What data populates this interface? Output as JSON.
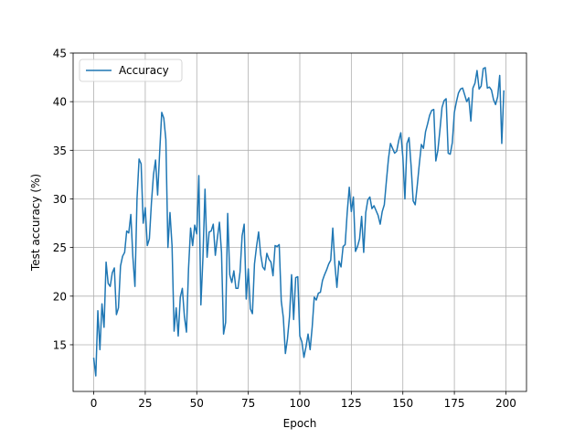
{
  "chart_data": {
    "type": "line",
    "title": "",
    "xlabel": "Epoch",
    "ylabel": "Test accuracy (%)",
    "xlim": [
      -10,
      210
    ],
    "ylim": [
      10.2,
      45
    ],
    "xticks": [
      0,
      25,
      50,
      75,
      100,
      125,
      150,
      175,
      200
    ],
    "yticks": [
      15,
      20,
      25,
      30,
      35,
      40,
      45
    ],
    "xtick_labels": [
      "0",
      "25",
      "50",
      "75",
      "100",
      "125",
      "150",
      "175",
      "200"
    ],
    "ytick_labels": [
      "15",
      "20",
      "25",
      "30",
      "35",
      "40",
      "45"
    ],
    "grid": true,
    "legend_position": "top-left",
    "series": [
      {
        "name": "Accuracy",
        "color": "#1f77b4",
        "x": [
          0,
          1,
          2,
          3,
          4,
          5,
          6,
          7,
          8,
          9,
          10,
          11,
          12,
          13,
          14,
          15,
          16,
          17,
          18,
          19,
          20,
          21,
          22,
          23,
          24,
          25,
          26,
          27,
          28,
          29,
          30,
          31,
          32,
          33,
          34,
          35,
          36,
          37,
          38,
          39,
          40,
          41,
          42,
          43,
          44,
          45,
          46,
          47,
          48,
          49,
          50,
          51,
          52,
          53,
          54,
          55,
          56,
          57,
          58,
          59,
          60,
          61,
          62,
          63,
          64,
          65,
          66,
          67,
          68,
          69,
          70,
          71,
          72,
          73,
          74,
          75,
          76,
          77,
          78,
          79,
          80,
          81,
          82,
          83,
          84,
          85,
          86,
          87,
          88,
          89,
          90,
          91,
          92,
          93,
          94,
          95,
          96,
          97,
          98,
          99,
          100,
          101,
          102,
          103,
          104,
          105,
          106,
          107,
          108,
          109,
          110,
          111,
          112,
          113,
          114,
          115,
          116,
          117,
          118,
          119,
          120,
          121,
          122,
          123,
          124,
          125,
          126,
          127,
          128,
          129,
          130,
          131,
          132,
          133,
          134,
          135,
          136,
          137,
          138,
          139,
          140,
          141,
          142,
          143,
          144,
          145,
          146,
          147,
          148,
          149,
          150,
          151,
          152,
          153,
          154,
          155,
          156,
          157,
          158,
          159,
          160,
          161,
          162,
          163,
          164,
          165,
          166,
          167,
          168,
          169,
          170,
          171,
          172,
          173,
          174,
          175,
          176,
          177,
          178,
          179,
          180,
          181,
          182,
          183,
          184,
          185,
          186,
          187,
          188,
          189,
          190,
          191,
          192,
          193,
          194,
          195,
          196,
          197,
          198,
          199
        ],
        "values": [
          13.6,
          11.8,
          18.5,
          14.5,
          19.2,
          16.8,
          23.5,
          21.3,
          21.0,
          22.4,
          22.9,
          18.1,
          18.8,
          23.1,
          24.1,
          24.5,
          26.7,
          26.5,
          28.4,
          24.0,
          21.0,
          30.0,
          34.1,
          33.6,
          27.5,
          29.1,
          25.2,
          25.9,
          29.6,
          32.5,
          34.0,
          30.4,
          34.8,
          38.9,
          38.3,
          36.1,
          25.0,
          28.6,
          25.2,
          16.4,
          18.8,
          15.9,
          19.9,
          20.8,
          17.9,
          16.3,
          22.8,
          27.0,
          25.2,
          27.3,
          26.4,
          32.4,
          19.1,
          24.0,
          31.0,
          24.0,
          26.6,
          26.7,
          27.4,
          24.2,
          26.0,
          27.6,
          24.5,
          16.1,
          17.3,
          28.5,
          22.2,
          21.4,
          22.6,
          20.8,
          20.8,
          22.5,
          26.2,
          27.4,
          19.7,
          22.8,
          18.7,
          18.2,
          23.3,
          25.1,
          26.6,
          24.3,
          23.0,
          22.7,
          24.4,
          23.8,
          23.5,
          22.1,
          25.2,
          25.1,
          25.3,
          19.5,
          17.8,
          14.1,
          15.6,
          17.9,
          22.2,
          17.6,
          21.9,
          22.0,
          15.9,
          15.3,
          13.7,
          14.8,
          16.1,
          14.5,
          16.8,
          19.9,
          19.6,
          20.3,
          20.4,
          21.6,
          22.2,
          22.7,
          23.3,
          23.7,
          27.0,
          23.3,
          20.9,
          23.6,
          23.0,
          25.1,
          25.3,
          28.6,
          31.2,
          28.7,
          30.2,
          24.6,
          25.1,
          25.9,
          28.2,
          24.5,
          28.6,
          29.9,
          30.2,
          29.0,
          29.3,
          28.8,
          28.3,
          27.4,
          28.7,
          29.4,
          31.8,
          34.1,
          35.7,
          35.2,
          34.7,
          34.9,
          36.0,
          36.8,
          34.3,
          30.0,
          35.7,
          36.3,
          33.4,
          29.8,
          29.4,
          31.4,
          33.6,
          35.6,
          35.2,
          36.9,
          37.7,
          38.6,
          39.1,
          39.2,
          33.9,
          35.0,
          37.1,
          39.4,
          40.1,
          40.3,
          34.7,
          34.6,
          35.8,
          38.9,
          40.0,
          40.9,
          41.3,
          41.4,
          40.7,
          40.0,
          40.4,
          38.0,
          41.4,
          41.9,
          43.2,
          41.3,
          41.6,
          43.4,
          43.5,
          41.4,
          41.5,
          41.2,
          40.2,
          39.7,
          40.5,
          42.7,
          35.7,
          41.1
        ]
      }
    ]
  }
}
